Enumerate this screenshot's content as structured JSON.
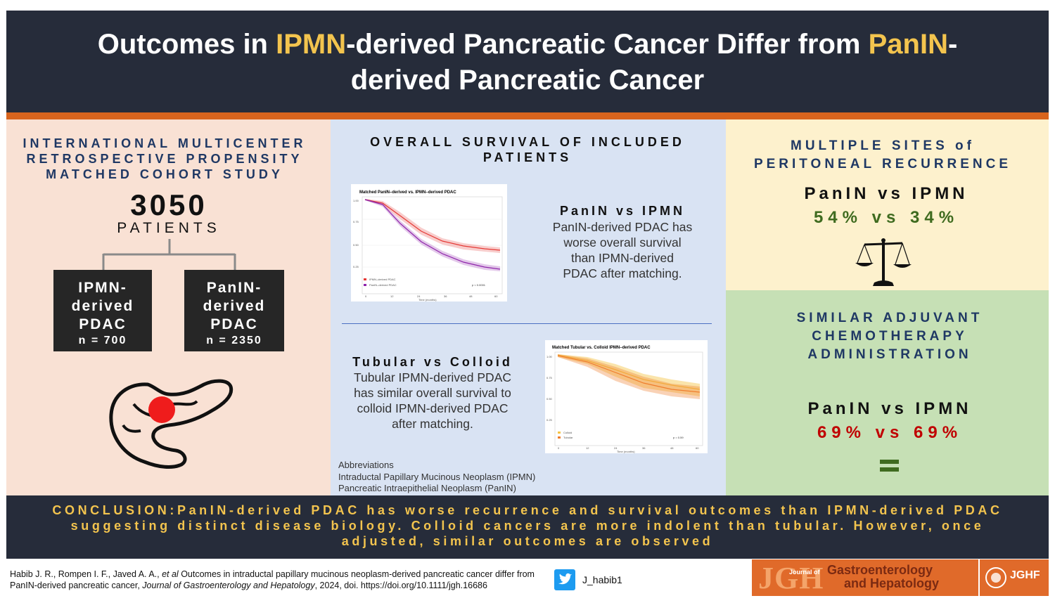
{
  "header": {
    "title_part1": "Outcomes in ",
    "title_hl1": "IPMN",
    "title_part2": "-derived Pancreatic Cancer Differ from ",
    "title_hl2": "PanIN",
    "title_part3": "-",
    "title_line2": "derived Pancreatic Cancer"
  },
  "left_panel": {
    "study_line1": "INTERNATIONAL MULTICENTER",
    "study_line2": "RETROSPECTIVE PROPENSITY",
    "study_line3": "MATCHED COHORT STUDY",
    "patient_count": "3050",
    "patient_label": "PATIENTS",
    "group_ipmn": {
      "line1": "IPMN-",
      "line2": "derived",
      "line3": "PDAC",
      "n": "n = 700"
    },
    "group_panin": {
      "line1": "PanIN-",
      "line2": "derived",
      "line3": "PDAC",
      "n": "n = 2350"
    },
    "icon": "pancreas-tumor-icon"
  },
  "middle_panel": {
    "heading_line1": "OVERALL SURVIVAL OF INCLUDED",
    "heading_line2": "PATIENTS",
    "plot1": {
      "title": "Matched PanIN–derived vs. IPMN–derived PDAC",
      "pvalue": "p < 0.0001",
      "legend": [
        "IPMN–derived PDAC",
        "PanIN–derived PDAC"
      ],
      "xlabel": "Time (months)",
      "xticks": [
        "0",
        "12",
        "24",
        "36",
        "48",
        "60"
      ],
      "yticks": [
        "1.00",
        "0.75",
        "0.50",
        "0.25"
      ],
      "colors": [
        "#e53935",
        "#8e24aa"
      ]
    },
    "comparison1": {
      "heading": "PanIN vs IPMN",
      "text_line1": "PanIN-derived PDAC has",
      "text_line2": "worse overall survival",
      "text_line3": "than IPMN-derived",
      "text_line4": "PDAC after matching."
    },
    "plot2": {
      "title": "Matched Tubular vs. Colloid IPMN–derived PDAC",
      "pvalue": "p = 0.59",
      "legend": [
        "Colloid",
        "Tubular"
      ],
      "xlabel": "Time (months)",
      "xticks": [
        "0",
        "12",
        "24",
        "36",
        "48",
        "60"
      ],
      "yticks": [
        "1.00",
        "0.75",
        "0.50",
        "0.25"
      ],
      "colors": [
        "#f5c445",
        "#ef7d2d"
      ]
    },
    "comparison2": {
      "heading": "Tubular vs Colloid",
      "text_line1": "Tubular IPMN-derived PDAC",
      "text_line2": "has similar overall survival to",
      "text_line3": "colloid IPMN-derived PDAC",
      "text_line4": "after matching."
    },
    "abbrev_title": "Abbreviations",
    "abbrev_1": "Intraductal Papillary Mucinous Neoplasm (IPMN)",
    "abbrev_2": "Pancreatic Intraepithelial Neoplasm (PanIN)"
  },
  "right_top": {
    "heading_line1": "MULTIPLE SITES of",
    "heading_line2": "PERITONEAL RECURRENCE",
    "comparison": "PanIN vs IPMN",
    "values": "54% vs 34%",
    "icon": "balance-scale-icon",
    "color": "#3f6b1f"
  },
  "right_bottom": {
    "heading_line1": "SIMILAR ADJUVANT",
    "heading_line2": "CHEMOTHERAPY",
    "heading_line3": "ADMINISTRATION",
    "comparison": "PanIN vs IPMN",
    "values": "69% vs 69%",
    "icon": "equals-icon",
    "color": "#c00000"
  },
  "conclusion": {
    "line1": "CONCLUSION:PanIN-derived PDAC has worse recurrence and survival outcomes than IPMN-derived PDAC",
    "line2": "suggesting distinct disease biology. Colloid cancers are more indolent than tubular. However, once",
    "line3": "adjusted, similar outcomes are observed"
  },
  "footer": {
    "cite_authors": "Habib J. R., Rompen I. F., Javed A. A., ",
    "cite_etal": "et al",
    "cite_title": " Outcomes in intraductal papillary mucinous neoplasm-derived pancreatic cancer differ from PanIN-derived pancreatic cancer, ",
    "cite_journal": "Journal of Gastroenterology and Hepatology",
    "cite_rest": ", 2024, doi. https://doi.org/10.1111/jgh.16686",
    "twitter_handle": "J_habib1",
    "twitter_icon": "twitter-bird-icon",
    "journal_logo_big": "JGH",
    "journal_logo_small": "Journal of",
    "journal_name_line1": "Gastroenterology",
    "journal_name_line2": "and Hepatology",
    "jghf_logo": "JGHF"
  }
}
